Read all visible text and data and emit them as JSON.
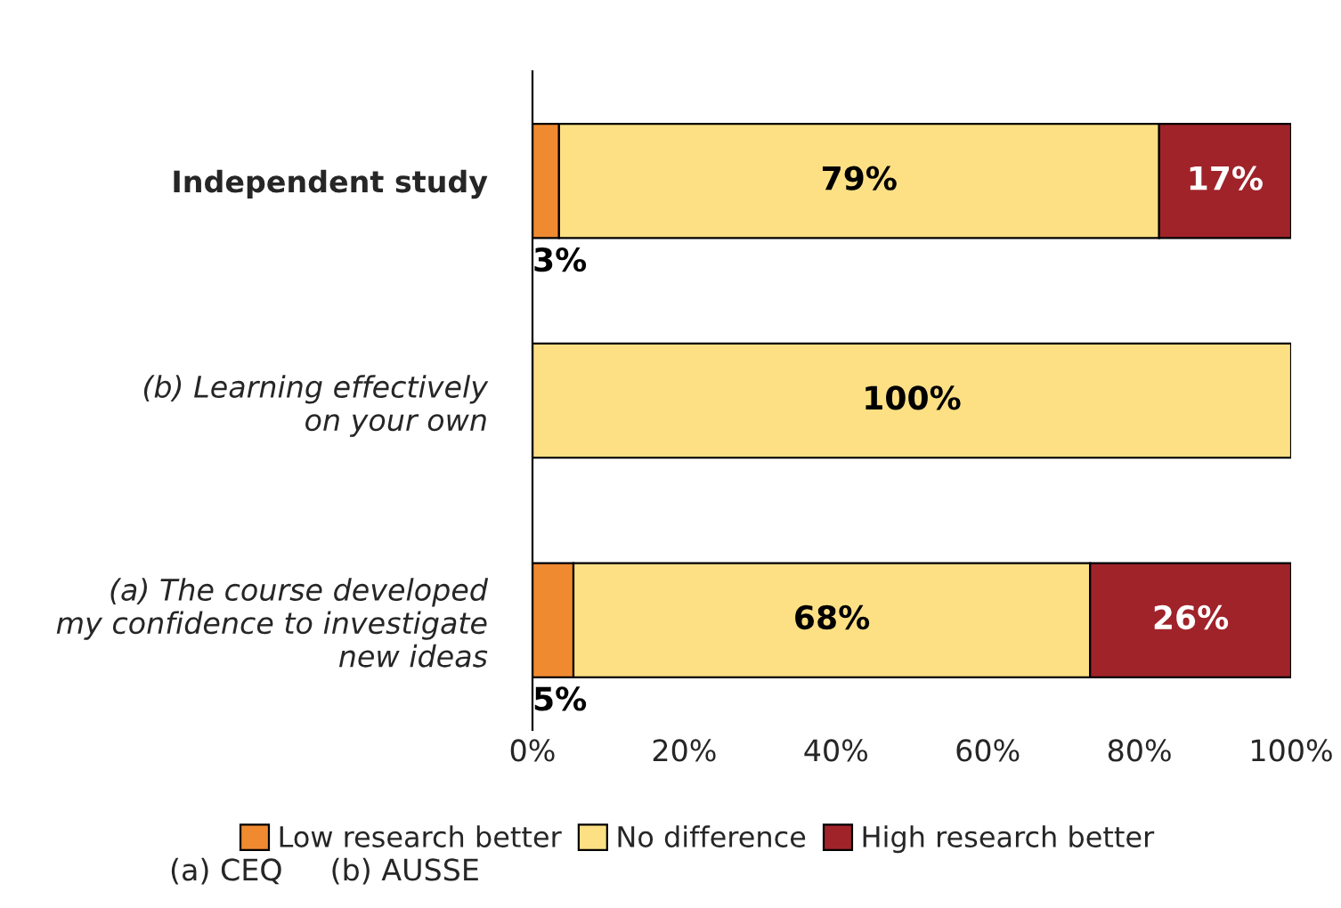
{
  "chart_data": {
    "type": "bar",
    "orientation": "horizontal",
    "stacked": true,
    "categories": [
      "Independent study",
      "(b) Learning effectively\non your own",
      "(a) The course developed\nmy confidence to investigate\nnew ideas"
    ],
    "series": [
      {
        "name": "Low research better",
        "color": "#f08a30",
        "values": [
          3.5,
          null,
          5.4
        ],
        "value_labels": [
          "3%",
          null,
          "5%"
        ]
      },
      {
        "name": "No difference",
        "color": "#fde084",
        "values": [
          79.1,
          100,
          68.1
        ],
        "value_labels": [
          "79%",
          "100%",
          "68%"
        ]
      },
      {
        "name": "High research better",
        "color": "#a0232a",
        "values": [
          17.4,
          null,
          26.5
        ],
        "value_labels": [
          "17%",
          null,
          "26%"
        ]
      }
    ],
    "xlim": [
      0,
      100
    ],
    "xticks": [
      {
        "value": 0,
        "label": "0%"
      },
      {
        "value": 20,
        "label": "20%"
      },
      {
        "value": 40,
        "label": "40%"
      },
      {
        "value": 60,
        "label": "60%"
      },
      {
        "value": 80,
        "label": "80%"
      },
      {
        "value": 100,
        "label": "100%"
      }
    ],
    "grid": false,
    "legend": "bottom",
    "annotations": [
      "(a) CEQ     (b) AUSSE"
    ]
  }
}
